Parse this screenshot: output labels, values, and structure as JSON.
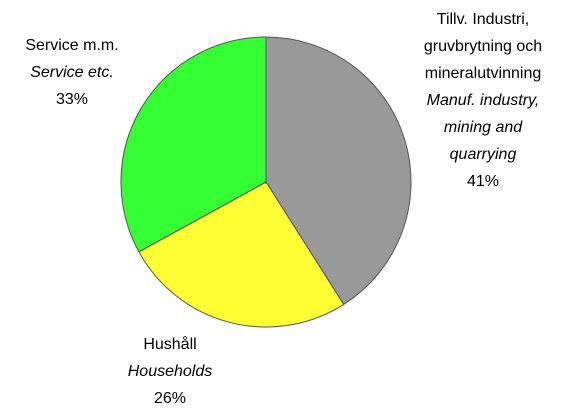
{
  "chart_data": {
    "type": "pie",
    "categories": [
      [
        "Tillv. Industri,",
        "gruvbrytning och",
        "mineralutvinning"
      ],
      [
        "Hushåll"
      ],
      [
        "Service m.m."
      ]
    ],
    "categories_en": [
      [
        "Manuf. industry,",
        "mining and",
        "quarrying"
      ],
      [
        "Households"
      ],
      [
        "Service etc."
      ]
    ],
    "values": [
      41,
      26,
      33
    ],
    "value_labels": [
      "41%",
      "26%",
      "33%"
    ],
    "colors": [
      "#999999",
      "#ffff33",
      "#33ff33"
    ]
  }
}
